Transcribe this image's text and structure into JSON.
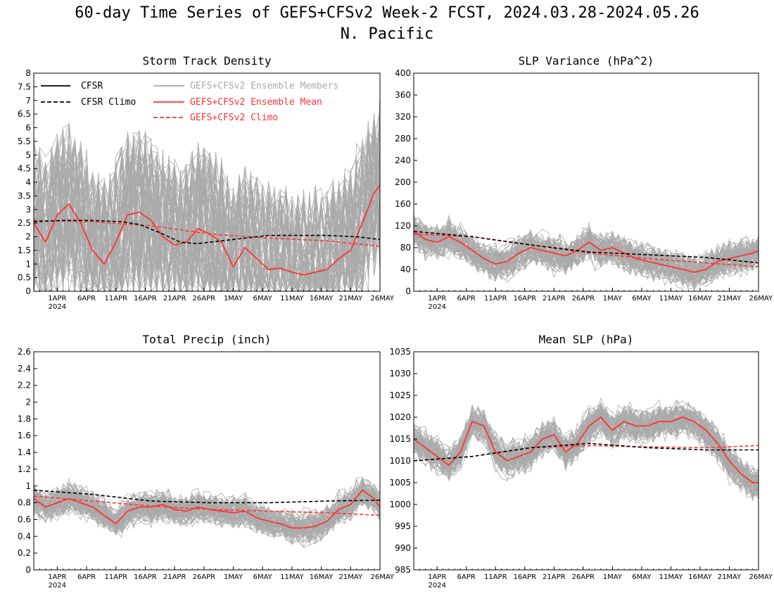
{
  "figure": {
    "title_line1": "60-day Time Series of GEFS+CFSv2 Week-2 FCST, 2024.03.28-2024.05.26",
    "title_line2": "N. Pacific"
  },
  "legend": [
    {
      "label": "CFSR",
      "color": "#000000",
      "style": "solid"
    },
    {
      "label": "CFSR Climo",
      "color": "#000000",
      "style": "dashed"
    },
    {
      "label": "GEFS+CFSv2 Ensemble Members",
      "color": "#aaaaaa",
      "style": "solid"
    },
    {
      "label": "GEFS+CFSv2 Ensemble Mean",
      "color": "#ff3333",
      "style": "solid"
    },
    {
      "label": "GEFS+CFSv2 Climo",
      "color": "#ff3333",
      "style": "dashed"
    }
  ],
  "x_ticks": [
    {
      "label": "1APR",
      "day": 4
    },
    {
      "label": "6APR",
      "day": 9
    },
    {
      "label": "11APR",
      "day": 14
    },
    {
      "label": "16APR",
      "day": 19
    },
    {
      "label": "21APR",
      "day": 24
    },
    {
      "label": "26APR",
      "day": 29
    },
    {
      "label": "1MAY",
      "day": 34
    },
    {
      "label": "6MAY",
      "day": 39
    },
    {
      "label": "11MAY",
      "day": 44
    },
    {
      "label": "16MAY",
      "day": 49
    },
    {
      "label": "21MAY",
      "day": 54
    },
    {
      "label": "26MAY",
      "day": 59
    }
  ],
  "x_year_label": "2024",
  "chart_data": [
    {
      "type": "line",
      "title": "Storm Track Density",
      "ylim": [
        0,
        8
      ],
      "yticks": [
        "0",
        "0.5",
        "1",
        "1.5",
        "2",
        "2.5",
        "3",
        "3.5",
        "4",
        "4.5",
        "5",
        "5.5",
        "6",
        "6.5",
        "7",
        "7.5",
        "8"
      ],
      "xlim": [
        0,
        59
      ],
      "spread": {
        "base": [
          1.0,
          0.3,
          1.2,
          1.8
        ],
        "amplitude": 2.2
      },
      "series": [
        {
          "name": "GEFS+CFSv2 Ensemble Mean",
          "color": "#ff3333",
          "style": "solid",
          "x": [
            0,
            2,
            4,
            6,
            8,
            10,
            12,
            14,
            16,
            18,
            20,
            22,
            24,
            26,
            28,
            30,
            32,
            34,
            36,
            38,
            40,
            42,
            44,
            46,
            48,
            50,
            52,
            54,
            56,
            58,
            59
          ],
          "y": [
            2.5,
            1.8,
            2.8,
            3.2,
            2.5,
            1.5,
            1.0,
            1.8,
            2.8,
            2.9,
            2.6,
            2.0,
            1.7,
            1.8,
            2.3,
            2.1,
            1.8,
            0.9,
            1.6,
            1.2,
            0.8,
            0.85,
            0.7,
            0.6,
            0.7,
            0.8,
            1.2,
            1.5,
            2.5,
            3.6,
            3.9
          ]
        },
        {
          "name": "GEFS+CFSv2 Climo",
          "color": "#ff3333",
          "style": "dashed",
          "x": [
            0,
            10,
            20,
            30,
            40,
            50,
            59
          ],
          "y": [
            2.6,
            2.55,
            2.4,
            2.1,
            1.95,
            1.85,
            1.65
          ]
        },
        {
          "name": "CFSR Climo",
          "color": "#000000",
          "style": "dashed",
          "x": [
            0,
            5,
            10,
            15,
            18,
            22,
            25,
            28,
            32,
            36,
            40,
            45,
            50,
            55,
            59
          ],
          "y": [
            2.55,
            2.6,
            2.6,
            2.55,
            2.45,
            2.1,
            1.8,
            1.75,
            1.85,
            1.95,
            2.05,
            2.05,
            2.05,
            2.0,
            1.9
          ]
        }
      ]
    },
    {
      "type": "line",
      "title": "SLP Variance (hPa^2)",
      "ylim": [
        0,
        400
      ],
      "yticks": [
        "0",
        "40",
        "80",
        "120",
        "160",
        "200",
        "240",
        "280",
        "320",
        "360",
        "400"
      ],
      "xlim": [
        0,
        59
      ],
      "spread": {
        "base": [
          0.35,
          0.25,
          0.3,
          0.25
        ],
        "amplitude": 0.35
      },
      "series": [
        {
          "name": "GEFS+CFSv2 Ensemble Mean",
          "color": "#ff3333",
          "style": "solid",
          "x": [
            0,
            2,
            4,
            6,
            8,
            10,
            12,
            14,
            16,
            18,
            20,
            22,
            24,
            26,
            28,
            30,
            32,
            34,
            36,
            38,
            40,
            42,
            44,
            46,
            48,
            50,
            52,
            54,
            56,
            58,
            59
          ],
          "y": [
            110,
            95,
            90,
            100,
            90,
            75,
            60,
            50,
            55,
            70,
            80,
            75,
            70,
            65,
            75,
            90,
            75,
            80,
            70,
            60,
            55,
            50,
            45,
            40,
            35,
            40,
            55,
            60,
            65,
            70,
            75
          ]
        },
        {
          "name": "GEFS+CFSv2 Climo",
          "color": "#ff3333",
          "style": "dashed",
          "x": [
            0,
            10,
            20,
            30,
            40,
            50,
            59
          ],
          "y": [
            105,
            100,
            85,
            70,
            60,
            52,
            45
          ]
        },
        {
          "name": "CFSR Climo",
          "color": "#000000",
          "style": "dashed",
          "x": [
            0,
            10,
            20,
            30,
            40,
            50,
            59
          ],
          "y": [
            110,
            100,
            85,
            72,
            67,
            62,
            52
          ]
        }
      ]
    },
    {
      "type": "line",
      "title": "Total Precip (inch)",
      "ylim": [
        0,
        2.6
      ],
      "yticks": [
        "0",
        "0.2",
        "0.4",
        "0.6",
        "0.8",
        "1",
        "1.2",
        "1.4",
        "1.6",
        "1.8",
        "2",
        "2.2",
        "2.4",
        "2.6"
      ],
      "xlim": [
        0,
        59
      ],
      "spread": {
        "base": [
          0.3,
          0.35,
          0.3,
          0.3
        ],
        "amplitude": 0.3
      },
      "series": [
        {
          "name": "GEFS+CFSv2 Ensemble Mean",
          "color": "#ff3333",
          "style": "solid",
          "x": [
            0,
            2,
            4,
            6,
            8,
            10,
            12,
            14,
            16,
            18,
            20,
            22,
            24,
            26,
            28,
            30,
            32,
            34,
            36,
            38,
            40,
            42,
            44,
            46,
            48,
            50,
            52,
            54,
            56,
            58,
            59
          ],
          "y": [
            0.85,
            0.75,
            0.8,
            0.85,
            0.8,
            0.75,
            0.65,
            0.55,
            0.7,
            0.75,
            0.75,
            0.78,
            0.72,
            0.7,
            0.75,
            0.72,
            0.7,
            0.68,
            0.7,
            0.62,
            0.58,
            0.55,
            0.5,
            0.5,
            0.52,
            0.58,
            0.72,
            0.78,
            0.95,
            0.85,
            0.75
          ]
        },
        {
          "name": "GEFS+CFSv2 Climo",
          "color": "#ff3333",
          "style": "dashed",
          "x": [
            0,
            10,
            20,
            30,
            40,
            50,
            59
          ],
          "y": [
            0.88,
            0.82,
            0.76,
            0.72,
            0.7,
            0.68,
            0.65
          ]
        },
        {
          "name": "CFSR Climo",
          "color": "#000000",
          "style": "dashed",
          "x": [
            0,
            10,
            20,
            30,
            40,
            50,
            59
          ],
          "y": [
            0.95,
            0.9,
            0.82,
            0.8,
            0.8,
            0.82,
            0.83
          ]
        }
      ]
    },
    {
      "type": "line",
      "title": "Mean SLP (hPa)",
      "ylim": [
        985,
        1035
      ],
      "yticks": [
        "985",
        "990",
        "995",
        "1000",
        "1005",
        "1010",
        "1015",
        "1020",
        "1025",
        "1030",
        "1035"
      ],
      "xlim": [
        0,
        59
      ],
      "spread": {
        "base": [
          0.25,
          0.35,
          0.3,
          0.35
        ],
        "amplitude": 0.35
      },
      "series": [
        {
          "name": "GEFS+CFSv2 Ensemble Mean",
          "color": "#ff3333",
          "style": "solid",
          "x": [
            0,
            2,
            4,
            6,
            8,
            10,
            12,
            14,
            16,
            18,
            20,
            22,
            24,
            26,
            28,
            30,
            32,
            34,
            36,
            38,
            40,
            42,
            44,
            46,
            48,
            50,
            52,
            54,
            56,
            58,
            59
          ],
          "y": [
            1015,
            1013,
            1011,
            1009,
            1012,
            1019,
            1018,
            1012,
            1010,
            1011,
            1012,
            1015,
            1016,
            1012,
            1014,
            1018,
            1020,
            1017,
            1019,
            1018,
            1018,
            1019,
            1019,
            1020,
            1019,
            1017,
            1014,
            1010,
            1007,
            1005,
            1005
          ]
        },
        {
          "name": "GEFS+CFSv2 Climo",
          "color": "#ff3333",
          "style": "dashed",
          "x": [
            0,
            10,
            20,
            30,
            40,
            50,
            59
          ],
          "y": [
            1010,
            1011,
            1013,
            1013.5,
            1013.2,
            1013,
            1013.5
          ]
        },
        {
          "name": "CFSR Climo",
          "color": "#000000",
          "style": "dashed",
          "x": [
            0,
            10,
            20,
            30,
            40,
            50,
            59
          ],
          "y": [
            1010,
            1011,
            1013,
            1014,
            1013,
            1012.5,
            1012.5
          ]
        }
      ]
    }
  ]
}
